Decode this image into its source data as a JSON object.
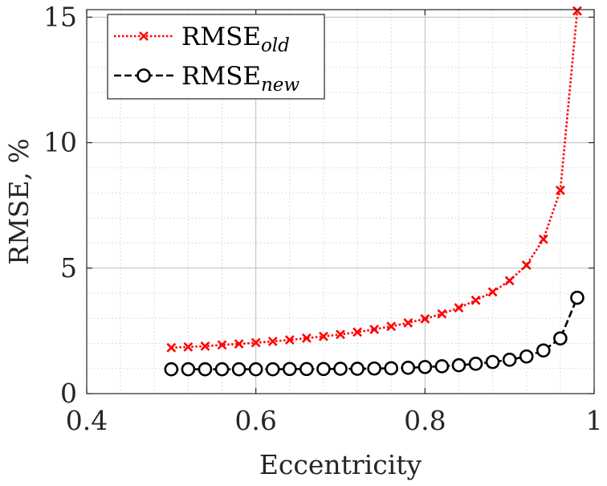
{
  "chart_data": {
    "type": "line",
    "xlabel": "Eccentricity",
    "ylabel": "RMSE, %",
    "xlim": [
      0.4,
      1.0
    ],
    "ylim": [
      0,
      15.3
    ],
    "xticks": [
      0.4,
      0.6,
      0.8,
      1.0
    ],
    "xtick_labels": [
      "0.4",
      "0.6",
      "0.8",
      "1"
    ],
    "yticks": [
      0,
      5,
      10,
      15
    ],
    "ytick_labels": [
      "0",
      "5",
      "10",
      "15"
    ],
    "grid": true,
    "minor_grid": true,
    "legend_position": "top-left",
    "x": [
      0.5,
      0.52,
      0.54,
      0.56,
      0.58,
      0.6,
      0.62,
      0.64,
      0.66,
      0.68,
      0.7,
      0.72,
      0.74,
      0.76,
      0.78,
      0.8,
      0.82,
      0.84,
      0.86,
      0.88,
      0.9,
      0.92,
      0.94,
      0.96,
      0.98
    ],
    "series": [
      {
        "name": "RMSE",
        "name_subscript": "old",
        "color": "#ff0000",
        "line_style": "dotted",
        "marker": "x",
        "values": [
          1.83,
          1.86,
          1.89,
          1.94,
          1.98,
          2.03,
          2.08,
          2.14,
          2.21,
          2.28,
          2.36,
          2.45,
          2.56,
          2.68,
          2.82,
          2.98,
          3.18,
          3.42,
          3.72,
          4.05,
          4.5,
          5.12,
          6.15,
          8.1,
          15.25
        ]
      },
      {
        "name": "RMSE",
        "name_subscript": "new",
        "color": "#000000",
        "line_style": "dashed",
        "marker": "o",
        "values": [
          0.97,
          0.97,
          0.97,
          0.97,
          0.97,
          0.97,
          0.97,
          0.98,
          0.98,
          0.98,
          0.99,
          0.99,
          1.0,
          1.01,
          1.03,
          1.06,
          1.09,
          1.13,
          1.19,
          1.26,
          1.35,
          1.48,
          1.72,
          2.2,
          3.82
        ]
      }
    ]
  }
}
